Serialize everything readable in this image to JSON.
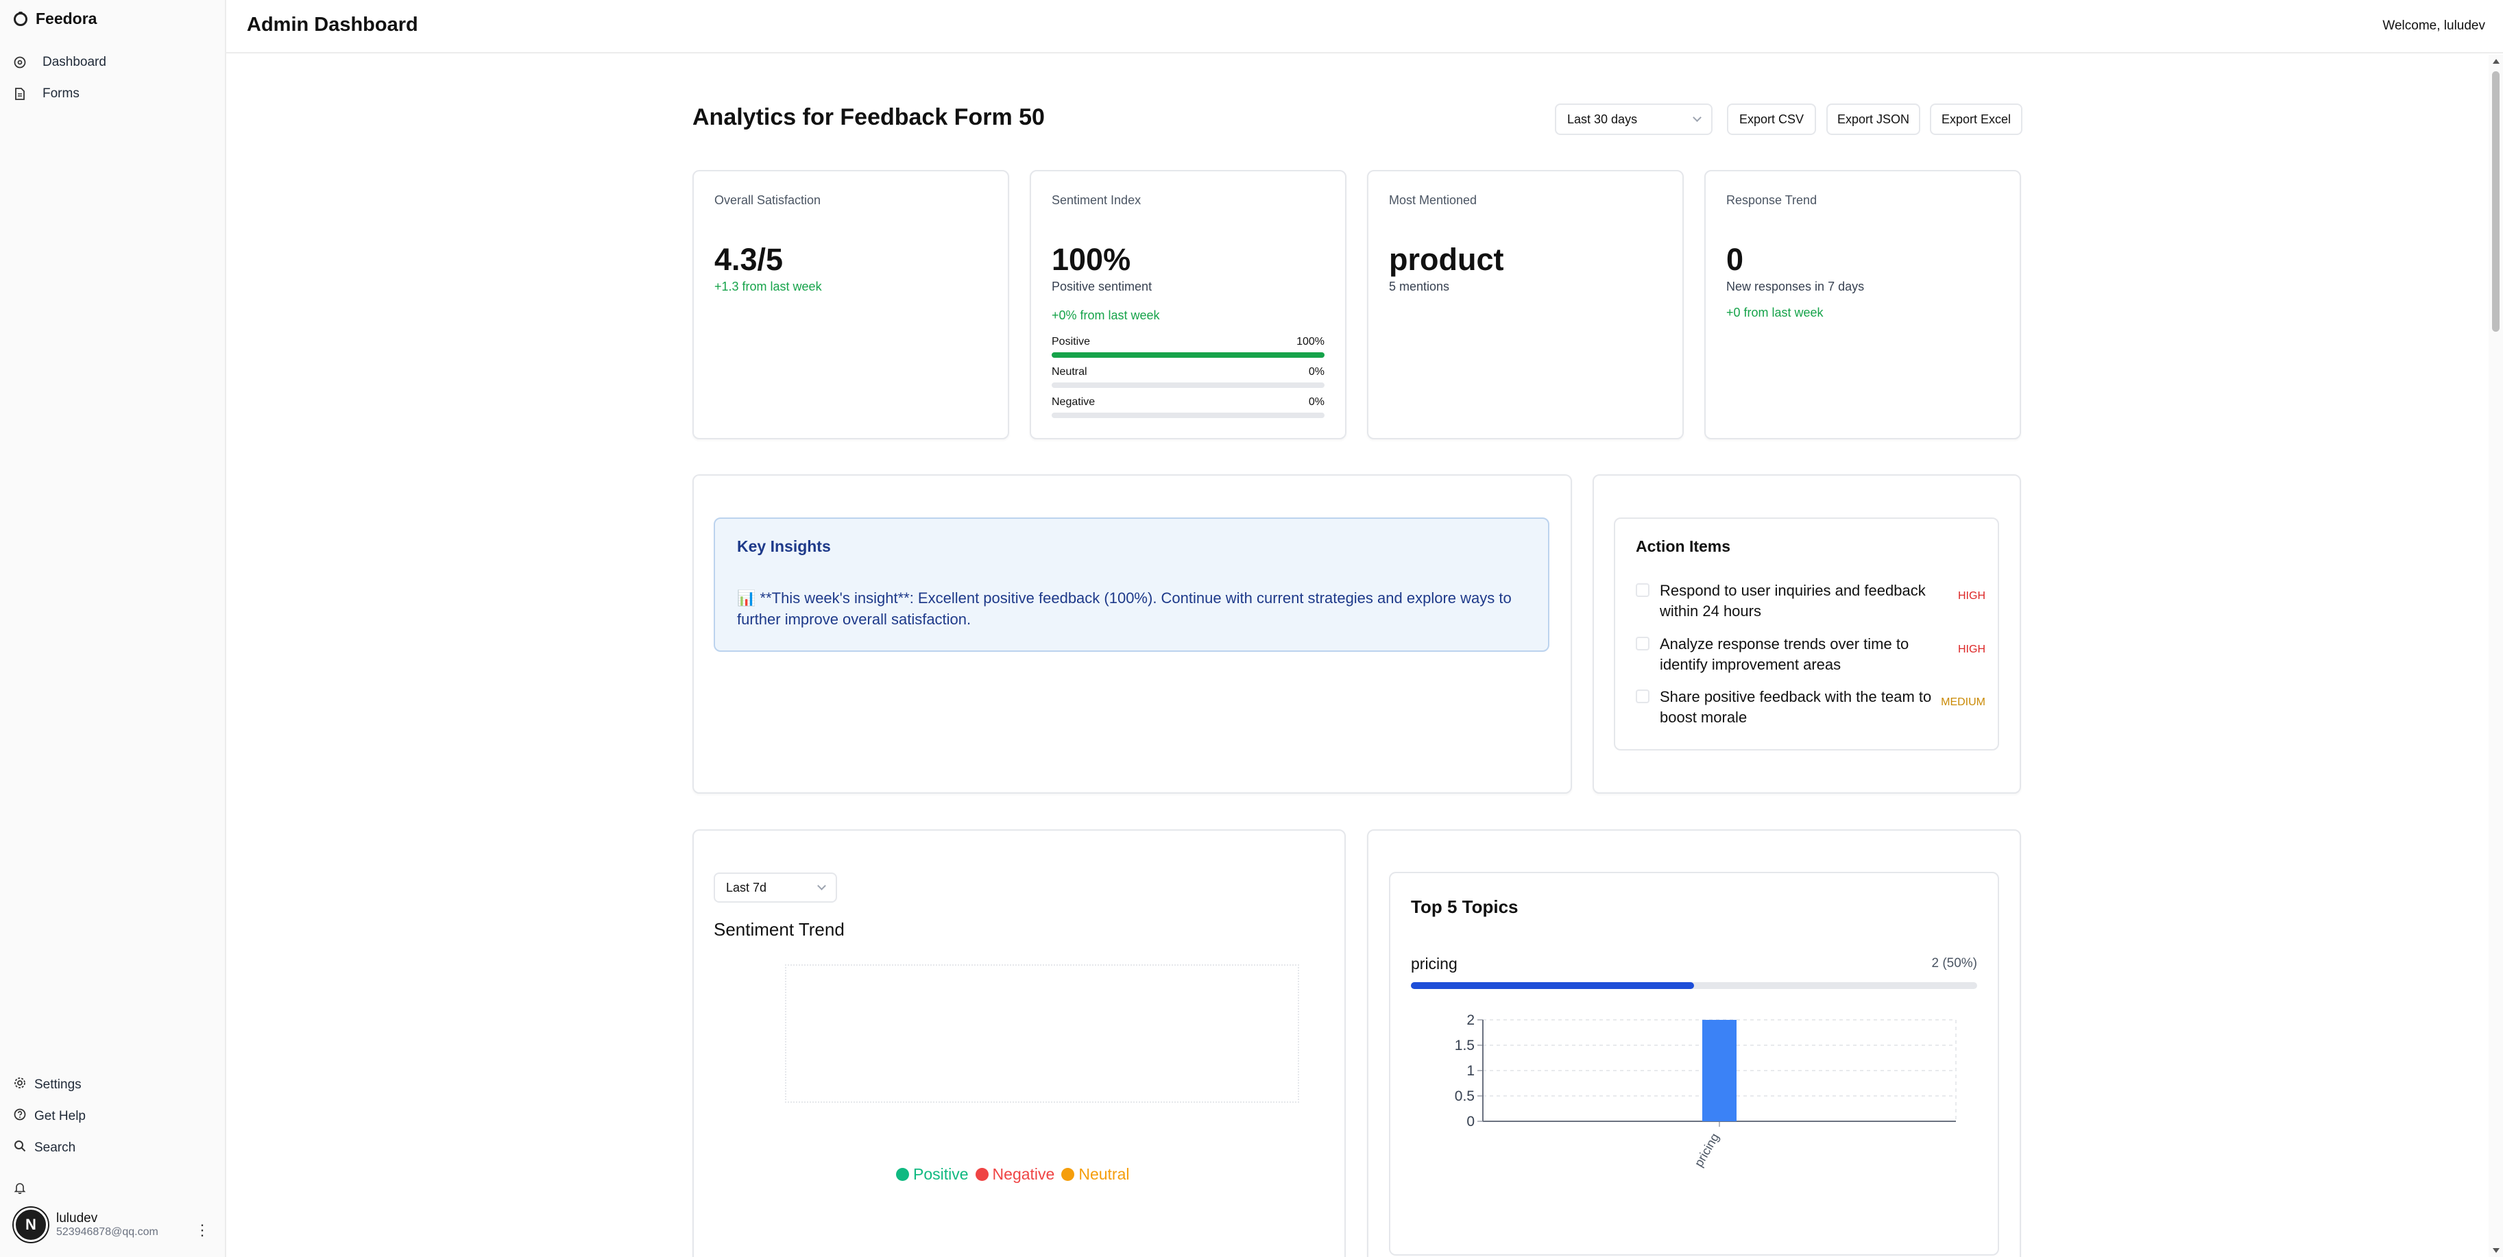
{
  "sidebar": {
    "brand": "Feedora",
    "nav": [
      {
        "label": "Dashboard",
        "icon": "dashboard-icon"
      },
      {
        "label": "Forms",
        "icon": "file-icon"
      }
    ],
    "bottom": [
      {
        "label": "Settings",
        "icon": "gear-icon"
      },
      {
        "label": "Get Help",
        "icon": "help-icon"
      },
      {
        "label": "Search",
        "icon": "search-icon"
      }
    ],
    "user": {
      "avatar_letter": "N",
      "name": "luludev",
      "email": "523946878@qq.com"
    }
  },
  "header": {
    "title": "Admin Dashboard",
    "welcome": "Welcome, luludev"
  },
  "main": {
    "title": "Analytics for Feedback Form 50",
    "range_select": "Last 30 days",
    "export_buttons": [
      "Export CSV",
      "Export JSON",
      "Export Excel"
    ],
    "cards": {
      "satisfaction": {
        "label": "Overall Satisfaction",
        "value": "4.3/5",
        "change": "+1.3 from last week"
      },
      "sentiment": {
        "label": "Sentiment Index",
        "value": "100%",
        "sub": "Positive sentiment",
        "change": "+0% from last week",
        "bars": [
          {
            "label": "Positive",
            "value": "100%",
            "fraction": 1.0
          },
          {
            "label": "Neutral",
            "value": "0%",
            "fraction": 0
          },
          {
            "label": "Negative",
            "value": "0%",
            "fraction": 0
          }
        ]
      },
      "mentioned": {
        "label": "Most Mentioned",
        "value": "product",
        "sub": "5 mentions"
      },
      "trend": {
        "label": "Response Trend",
        "value": "0",
        "sub": "New responses in 7 days",
        "change": "+0 from last week"
      }
    },
    "insights": {
      "title": "Key Insights",
      "text": "📊 **This week's insight**: Excellent positive feedback (100%). Continue with current strategies and explore ways to further improve overall satisfaction."
    },
    "actions": {
      "title": "Action Items",
      "items": [
        {
          "text": "Respond to user inquiries and feedback within 24 hours",
          "priority": "HIGH"
        },
        {
          "text": "Analyze response trends over time to identify improvement areas",
          "priority": "HIGH"
        },
        {
          "text": "Share positive feedback with the team to boost morale",
          "priority": "MEDIUM"
        }
      ]
    },
    "sentiment_trend": {
      "select": "Last 7d",
      "title": "Sentiment Trend",
      "legend": [
        {
          "label": "Positive",
          "color": "#10b981"
        },
        {
          "label": "Negative",
          "color": "#ef4444"
        },
        {
          "label": "Neutral",
          "color": "#f59e0b"
        }
      ]
    },
    "topics": {
      "title": "Top 5 Topics",
      "rows": [
        {
          "label": "pricing",
          "value": "2 (50%)",
          "fraction": 0.5
        }
      ]
    }
  },
  "chart_data": {
    "type": "bar",
    "categories": [
      "pricing"
    ],
    "values": [
      2
    ],
    "title": "",
    "xlabel": "",
    "ylabel": "",
    "ylim": [
      0,
      2
    ],
    "yticks": [
      "0",
      "0.5",
      "1",
      "1.5",
      "2"
    ],
    "grid": true,
    "color": "#3b82f6"
  }
}
